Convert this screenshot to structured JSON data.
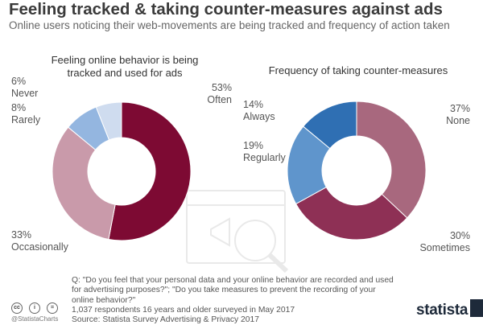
{
  "header": {
    "title": "Feeling tracked & taking counter-measures against ads",
    "subtitle": "Online users noticing their web-movements are being tracked and frequency of action taken"
  },
  "chart_data": [
    {
      "type": "pie",
      "title": "Feeling online behavior is being tracked and used for ads",
      "series": [
        {
          "label": "Often",
          "value": 53,
          "percent": "53%",
          "color": "#7d0a33"
        },
        {
          "label": "Occasionally",
          "value": 33,
          "percent": "33%",
          "color": "#c99aaa"
        },
        {
          "label": "Rarely",
          "value": 8,
          "percent": "8%",
          "color": "#94b6e0"
        },
        {
          "label": "Never",
          "value": 6,
          "percent": "6%",
          "color": "#cfdcef"
        }
      ]
    },
    {
      "type": "pie",
      "title": "Frequency of taking counter-measures",
      "series": [
        {
          "label": "None",
          "value": 37,
          "percent": "37%",
          "color": "#a8687e"
        },
        {
          "label": "Sometimes",
          "value": 30,
          "percent": "30%",
          "color": "#8e3055"
        },
        {
          "label": "Regularly",
          "value": 19,
          "percent": "19%",
          "color": "#5f95cc"
        },
        {
          "label": "Always",
          "value": 14,
          "percent": "14%",
          "color": "#2f6fb3"
        }
      ]
    }
  ],
  "footer": {
    "question": "Q: \"Do you feel that your personal data and your online behavior are recorded and used for advertising purposes?\"; \"Do you take measures to prevent the recording of your online behavior?\"",
    "respondents": "1,037 respondents 16 years and older surveyed in May 2017",
    "source": "Source: Statista Survey Advertising & Privacy 2017",
    "handle": "@StatistaCharts",
    "brand": "statista"
  },
  "icons": [
    "cc-icon",
    "attribution-icon",
    "no-derivatives-icon",
    "browser-megaphone-icon"
  ]
}
